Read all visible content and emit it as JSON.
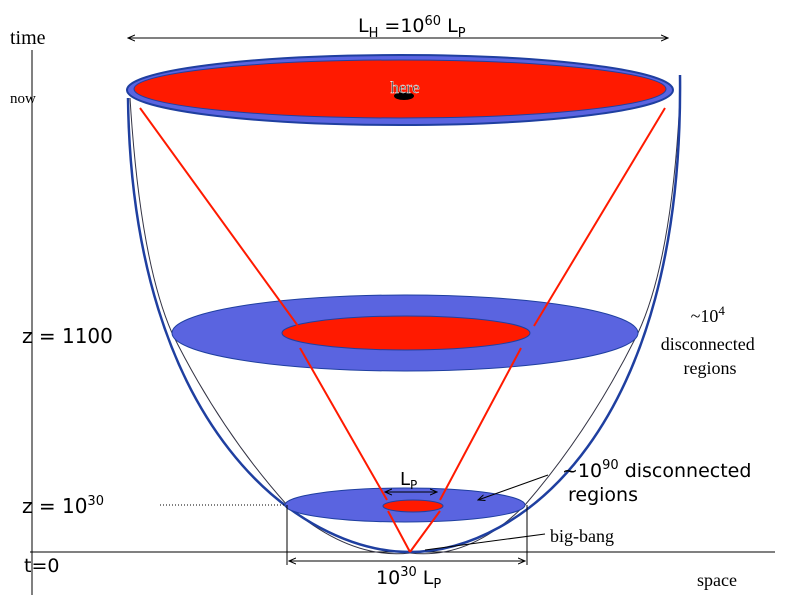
{
  "axes": {
    "time": "time",
    "now": "now",
    "space": "space",
    "origin": "t=0"
  },
  "horizon_label": [
    "L",
    "H",
    " =10",
    "60",
    " L",
    "P"
  ],
  "here": "here",
  "recombination_label": "z = 1100",
  "recombination_regions": [
    "~10",
    "4",
    "disconnected",
    "regions"
  ],
  "planck_label": [
    "z = 10",
    "30"
  ],
  "planck_regions": [
    "~10",
    "90",
    " disconnected",
    "regions"
  ],
  "planck_length": [
    "L",
    "P"
  ],
  "bottom_width": [
    "10",
    "30",
    " L",
    "P"
  ],
  "big_bang": "big-bang"
}
